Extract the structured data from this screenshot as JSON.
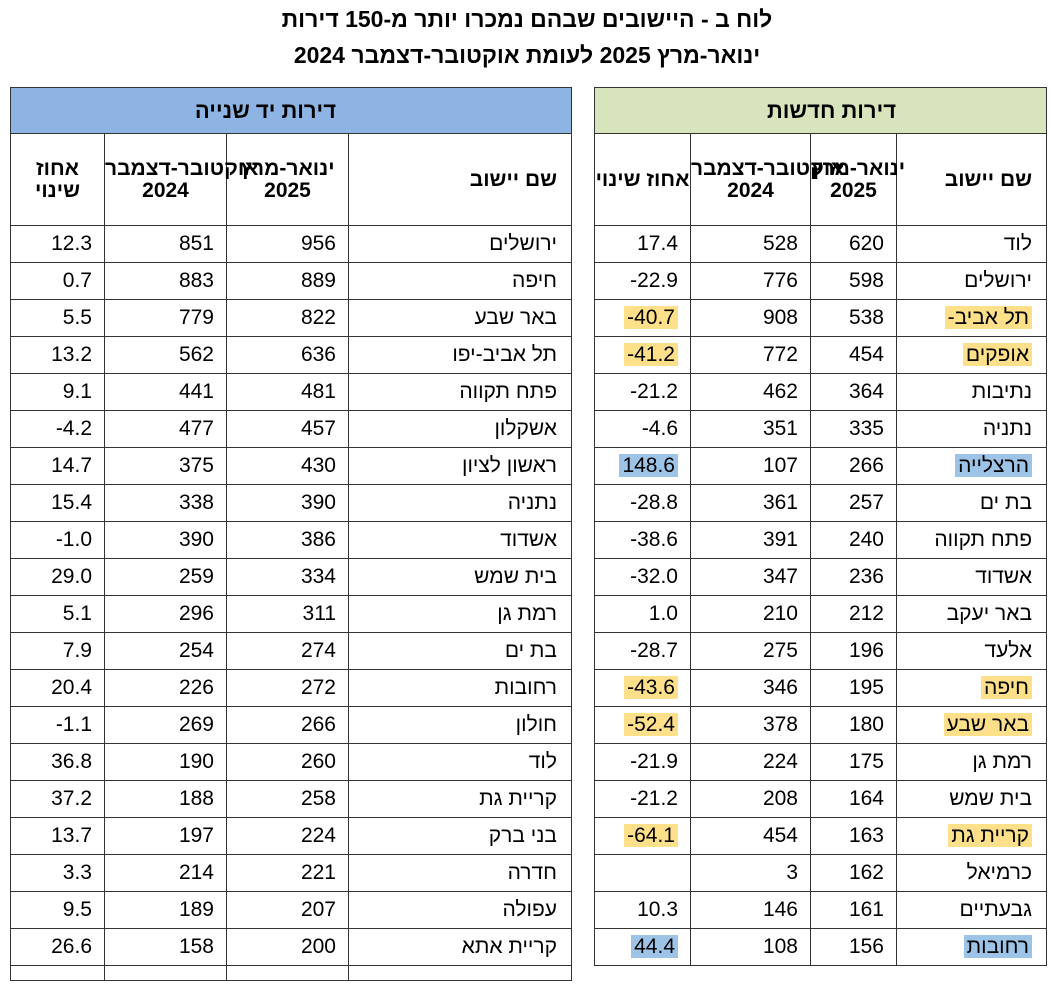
{
  "title": {
    "line1": "לוח ב - היישובים שבהם נמכרו יותר מ-150 דירות",
    "line2": "ינואר-מרץ 2025 לעומת אוקטובר-דצמבר 2024"
  },
  "colors": {
    "secondhand_header": "#8eb4e3",
    "new_header": "#d8e4bc",
    "highlight_yellow": "#ffe08a",
    "highlight_blue": "#9dc3e6"
  },
  "secondhand": {
    "header": "דירות יד   שנייה",
    "col_pct": "אחוז שינוי",
    "col_oct_dec": "אוקטובר-דצמבר 2024",
    "col_jan_mar": "ינואר-מרץ 2025",
    "col_name": "שם יישוב",
    "rows": [
      {
        "pct": "12.3",
        "oct": "851",
        "jan": "956",
        "name": "ירושלים"
      },
      {
        "pct": "0.7",
        "oct": "883",
        "jan": "889",
        "name": "חיפה"
      },
      {
        "pct": "5.5",
        "oct": "779",
        "jan": "822",
        "name": "באר שבע"
      },
      {
        "pct": "13.2",
        "oct": "562",
        "jan": "636",
        "name": "תל אביב-יפו"
      },
      {
        "pct": "9.1",
        "oct": "441",
        "jan": "481",
        "name": "פתח תקווה"
      },
      {
        "pct": "-4.2",
        "oct": "477",
        "jan": "457",
        "name": "אשקלון"
      },
      {
        "pct": "14.7",
        "oct": "375",
        "jan": "430",
        "name": "ראשון לציון"
      },
      {
        "pct": "15.4",
        "oct": "338",
        "jan": "390",
        "name": "נתניה"
      },
      {
        "pct": "-1.0",
        "oct": "390",
        "jan": "386",
        "name": "אשדוד"
      },
      {
        "pct": "29.0",
        "oct": "259",
        "jan": "334",
        "name": "בית שמש"
      },
      {
        "pct": "5.1",
        "oct": "296",
        "jan": "311",
        "name": "רמת גן"
      },
      {
        "pct": "7.9",
        "oct": "254",
        "jan": "274",
        "name": "בת ים"
      },
      {
        "pct": "20.4",
        "oct": "226",
        "jan": "272",
        "name": "רחובות"
      },
      {
        "pct": "-1.1",
        "oct": "269",
        "jan": "266",
        "name": "חולון"
      },
      {
        "pct": "36.8",
        "oct": "190",
        "jan": "260",
        "name": "לוד"
      },
      {
        "pct": "37.2",
        "oct": "188",
        "jan": "258",
        "name": "קריית גת"
      },
      {
        "pct": "13.7",
        "oct": "197",
        "jan": "224",
        "name": "בני ברק"
      },
      {
        "pct": "3.3",
        "oct": "214",
        "jan": "221",
        "name": "חדרה"
      },
      {
        "pct": "9.5",
        "oct": "189",
        "jan": "207",
        "name": "עפולה"
      },
      {
        "pct": "26.6",
        "oct": "158",
        "jan": "200",
        "name": "קריית אתא"
      }
    ]
  },
  "new": {
    "header": "דירות    חדשות",
    "col_pct": "אחוז שינוי",
    "col_oct_dec": "אוקטובר-דצמבר 2024",
    "col_jan_mar": "ינואר-מרץ 2025",
    "col_name": "שם יישוב",
    "rows": [
      {
        "pct": "17.4",
        "oct": "528",
        "jan": "620",
        "name": "לוד",
        "hl": ""
      },
      {
        "pct": "-22.9",
        "oct": "776",
        "jan": "598",
        "name": "ירושלים",
        "hl": ""
      },
      {
        "pct": "-40.7",
        "oct": "908",
        "jan": "538",
        "name": "תל אביב-",
        "hl": "yellow"
      },
      {
        "pct": "-41.2",
        "oct": "772",
        "jan": "454",
        "name": "אופקים",
        "hl": "yellow"
      },
      {
        "pct": "-21.2",
        "oct": "462",
        "jan": "364",
        "name": "נתיבות",
        "hl": ""
      },
      {
        "pct": "-4.6",
        "oct": "351",
        "jan": "335",
        "name": "נתניה",
        "hl": ""
      },
      {
        "pct": "148.6",
        "oct": "107",
        "jan": "266",
        "name": "הרצלייה",
        "hl": "blue"
      },
      {
        "pct": "-28.8",
        "oct": "361",
        "jan": "257",
        "name": "בת ים",
        "hl": ""
      },
      {
        "pct": "-38.6",
        "oct": "391",
        "jan": "240",
        "name": "פתח תקווה",
        "hl": ""
      },
      {
        "pct": "-32.0",
        "oct": "347",
        "jan": "236",
        "name": "אשדוד",
        "hl": ""
      },
      {
        "pct": "1.0",
        "oct": "210",
        "jan": "212",
        "name": "באר יעקב",
        "hl": ""
      },
      {
        "pct": "-28.7",
        "oct": "275",
        "jan": "196",
        "name": "אלעד",
        "hl": ""
      },
      {
        "pct": "-43.6",
        "oct": "346",
        "jan": "195",
        "name": "חיפה",
        "hl": "yellow"
      },
      {
        "pct": "-52.4",
        "oct": "378",
        "jan": "180",
        "name": "באר שבע",
        "hl": "yellow"
      },
      {
        "pct": "-21.9",
        "oct": "224",
        "jan": "175",
        "name": "רמת גן",
        "hl": ""
      },
      {
        "pct": "-21.2",
        "oct": "208",
        "jan": "164",
        "name": "בית שמש",
        "hl": ""
      },
      {
        "pct": "-64.1",
        "oct": "454",
        "jan": "163",
        "name": "קריית גת",
        "hl": "yellow"
      },
      {
        "pct": "",
        "oct": "3",
        "jan": "162",
        "name": "כרמיאל",
        "hl": ""
      },
      {
        "pct": "10.3",
        "oct": "146",
        "jan": "161",
        "name": "גבעתיים",
        "hl": ""
      },
      {
        "pct": "44.4",
        "oct": "108",
        "jan": "156",
        "name": "רחובות",
        "hl": "blue"
      }
    ]
  }
}
